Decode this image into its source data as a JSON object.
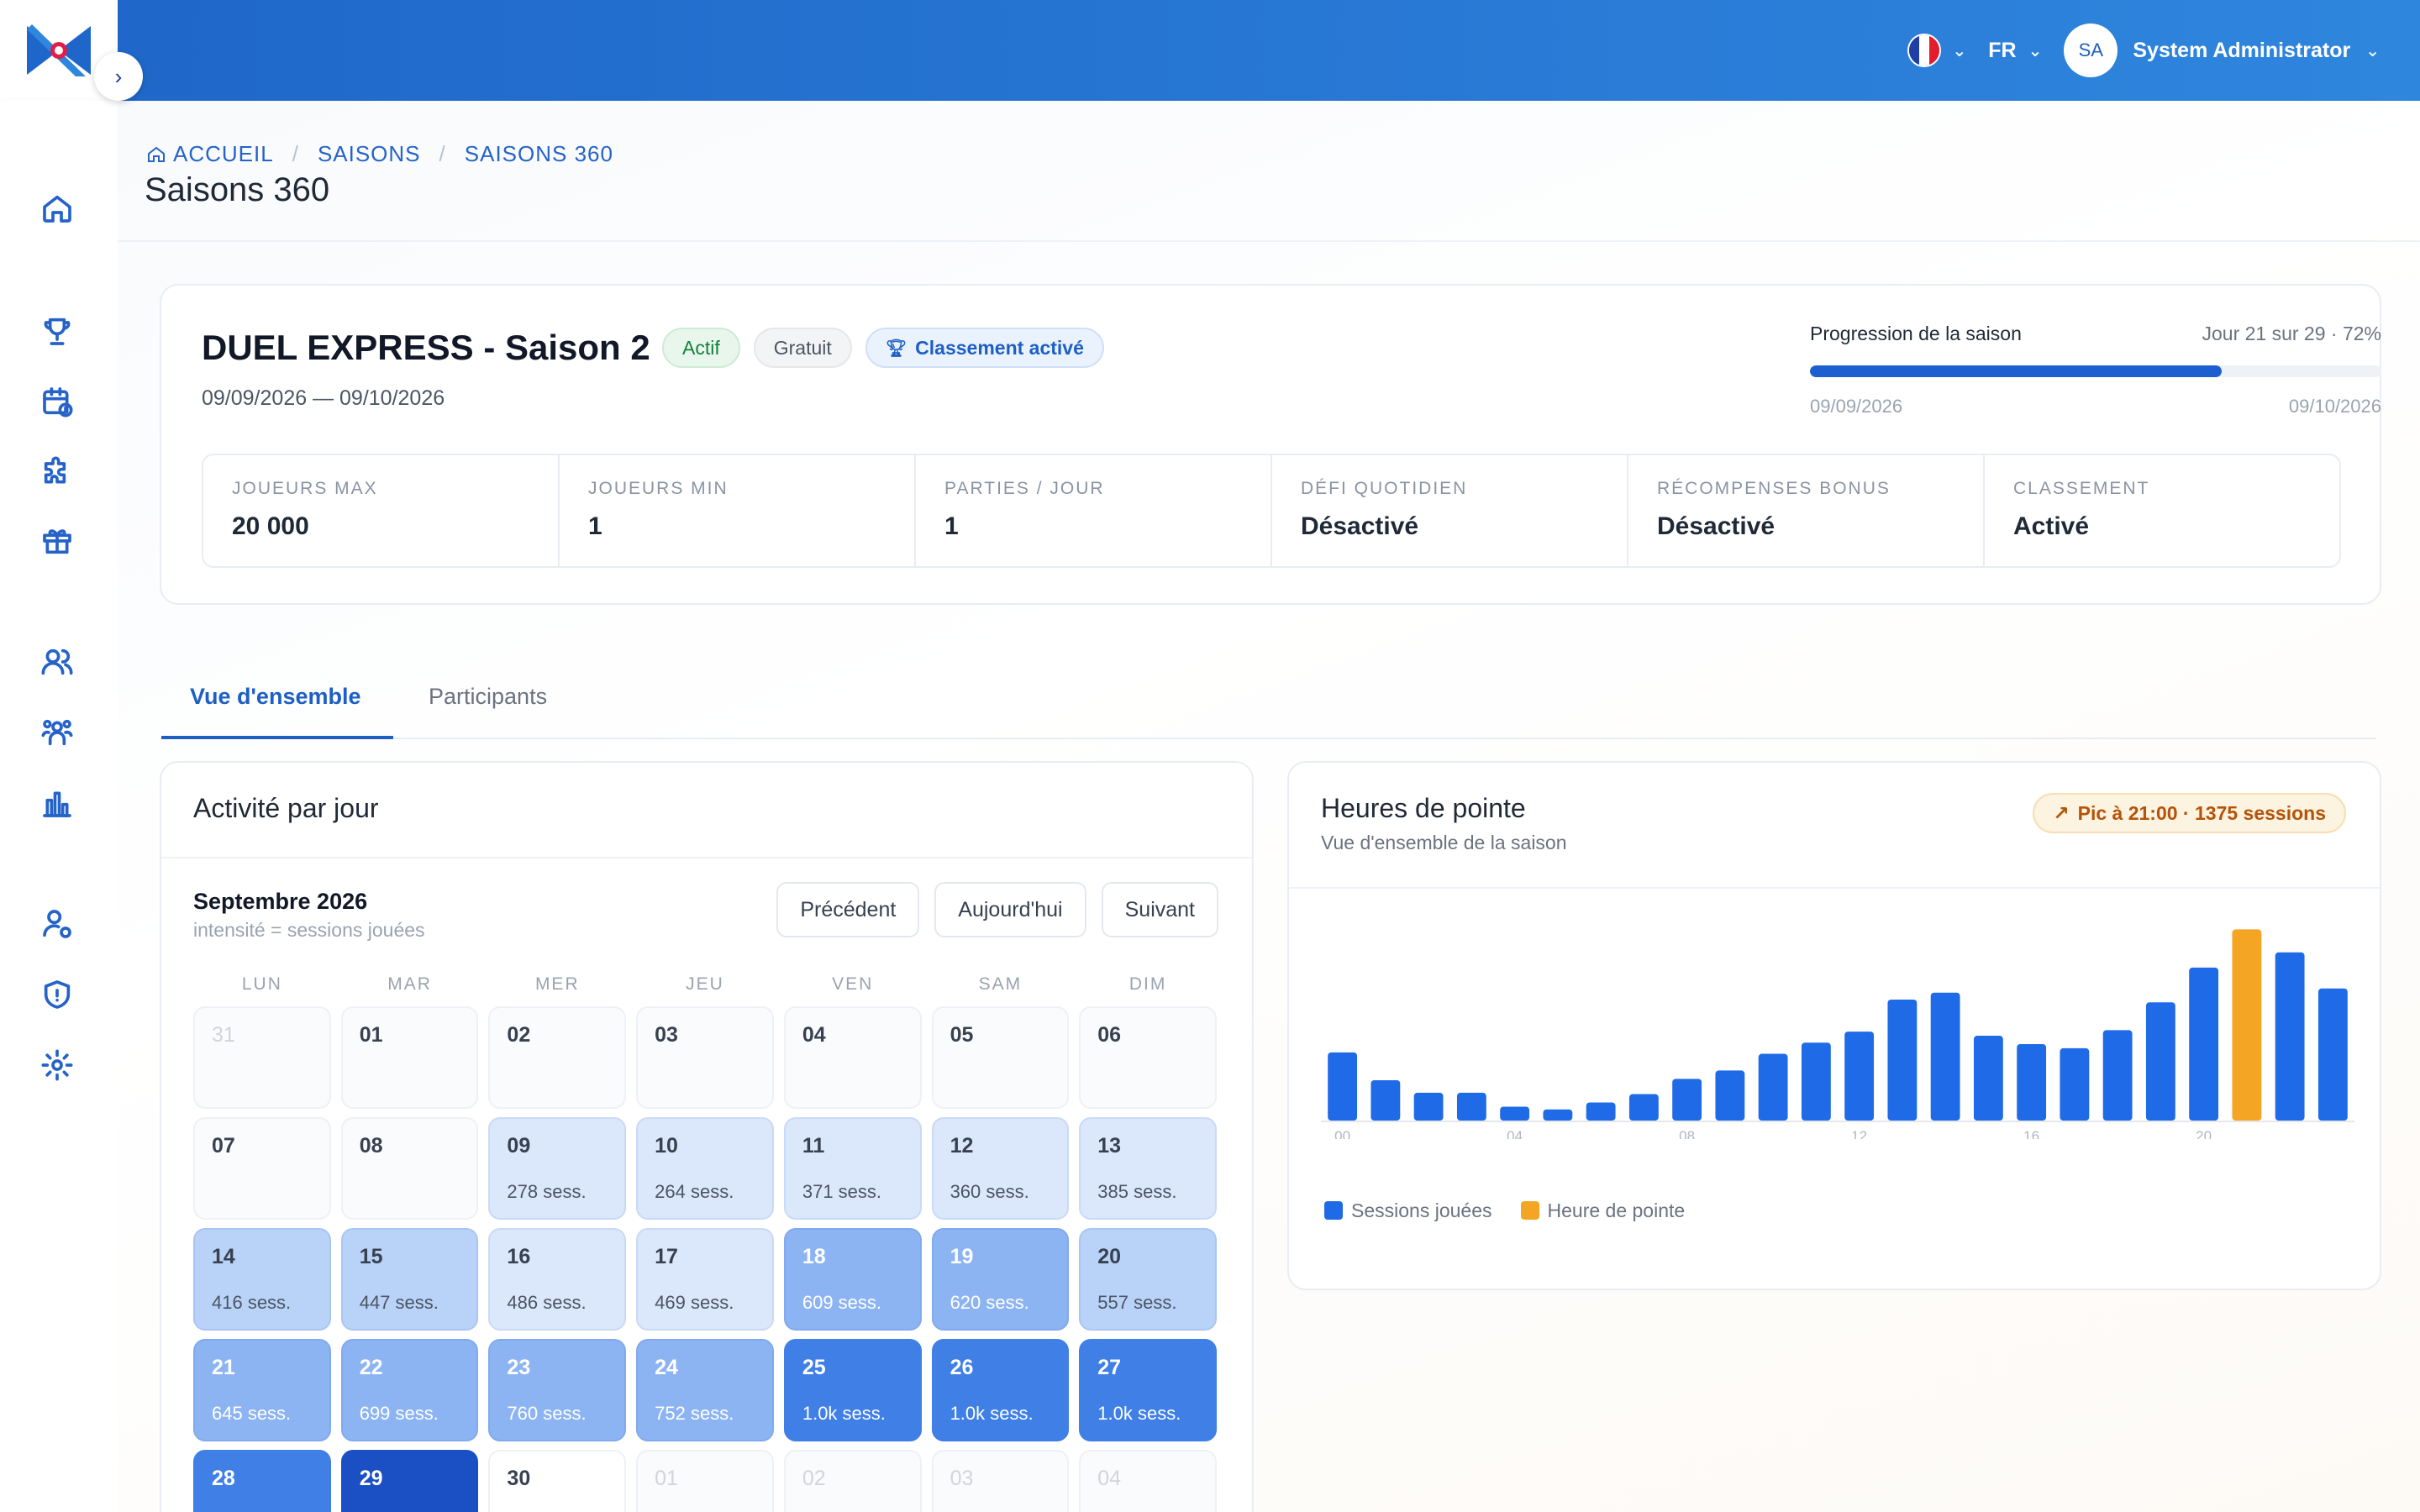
{
  "topbar": {
    "language": "FR",
    "user_initials": "SA",
    "user_name": "System Administrator"
  },
  "breadcrumb": {
    "home": "ACCUEIL",
    "level2": "SAISONS",
    "current": "SAISONS 360"
  },
  "page_title": "Saisons 360",
  "season": {
    "title": "DUEL EXPRESS - Saison 2",
    "badge_status": "Actif",
    "badge_price": "Gratuit",
    "badge_ranking": "Classement activé",
    "dates": "09/09/2026 — 09/10/2026",
    "progress_label": "Progression de la saison",
    "progress_value": "Jour 21 sur 29 · 72%",
    "progress_fraction": 0.72,
    "progress_start": "09/09/2026",
    "progress_end": "09/10/2026",
    "stats": [
      {
        "key": "JOUEURS MAX",
        "value": "20 000"
      },
      {
        "key": "JOUEURS MIN",
        "value": "1"
      },
      {
        "key": "PARTIES / JOUR",
        "value": "1"
      },
      {
        "key": "DÉFI QUOTIDIEN",
        "value": "Désactivé"
      },
      {
        "key": "RÉCOMPENSES BONUS",
        "value": "Désactivé"
      },
      {
        "key": "CLASSEMENT",
        "value": "Activé"
      }
    ]
  },
  "tabs": {
    "overview": "Vue d'ensemble",
    "participants": "Participants"
  },
  "activity": {
    "title": "Activité par jour",
    "month": "Septembre 2026",
    "subtitle": "intensité = sessions jouées",
    "btn_prev": "Précédent",
    "btn_today": "Aujourd'hui",
    "btn_next": "Suivant",
    "weekdays": [
      "LUN",
      "MAR",
      "MER",
      "JEU",
      "VEN",
      "SAM",
      "DIM"
    ],
    "days": [
      {
        "d": "31",
        "s": "",
        "lvl": "muted"
      },
      {
        "d": "01",
        "s": "",
        "lvl": "none"
      },
      {
        "d": "02",
        "s": "",
        "lvl": "none"
      },
      {
        "d": "03",
        "s": "",
        "lvl": "none"
      },
      {
        "d": "04",
        "s": "",
        "lvl": "none"
      },
      {
        "d": "05",
        "s": "",
        "lvl": "none"
      },
      {
        "d": "06",
        "s": "",
        "lvl": "none"
      },
      {
        "d": "07",
        "s": "",
        "lvl": "none"
      },
      {
        "d": "08",
        "s": "",
        "lvl": "none"
      },
      {
        "d": "09",
        "s": "278 sess.",
        "lvl": "l1"
      },
      {
        "d": "10",
        "s": "264 sess.",
        "lvl": "l1"
      },
      {
        "d": "11",
        "s": "371 sess.",
        "lvl": "l1"
      },
      {
        "d": "12",
        "s": "360 sess.",
        "lvl": "l1"
      },
      {
        "d": "13",
        "s": "385 sess.",
        "lvl": "l1"
      },
      {
        "d": "14",
        "s": "416 sess.",
        "lvl": "l2"
      },
      {
        "d": "15",
        "s": "447 sess.",
        "lvl": "l2"
      },
      {
        "d": "16",
        "s": "486 sess.",
        "lvl": "l1"
      },
      {
        "d": "17",
        "s": "469 sess.",
        "lvl": "l1"
      },
      {
        "d": "18",
        "s": "609 sess.",
        "lvl": "l3"
      },
      {
        "d": "19",
        "s": "620 sess.",
        "lvl": "l3"
      },
      {
        "d": "20",
        "s": "557 sess.",
        "lvl": "l2"
      },
      {
        "d": "21",
        "s": "645 sess.",
        "lvl": "l3"
      },
      {
        "d": "22",
        "s": "699 sess.",
        "lvl": "l3"
      },
      {
        "d": "23",
        "s": "760 sess.",
        "lvl": "l3"
      },
      {
        "d": "24",
        "s": "752 sess.",
        "lvl": "l3"
      },
      {
        "d": "25",
        "s": "1.0k sess.",
        "lvl": "l4"
      },
      {
        "d": "26",
        "s": "1.0k sess.",
        "lvl": "l4"
      },
      {
        "d": "27",
        "s": "1.0k sess.",
        "lvl": "l4"
      },
      {
        "d": "28",
        "s": "",
        "lvl": "l4"
      },
      {
        "d": "29",
        "s": "",
        "lvl": "l5"
      },
      {
        "d": "30",
        "s": "",
        "lvl": "white"
      },
      {
        "d": "01",
        "s": "",
        "lvl": "muted"
      },
      {
        "d": "02",
        "s": "",
        "lvl": "muted"
      },
      {
        "d": "03",
        "s": "",
        "lvl": "muted"
      },
      {
        "d": "04",
        "s": "",
        "lvl": "muted"
      }
    ]
  },
  "peak": {
    "title": "Heures de pointe",
    "subtitle": "Vue d'ensemble de la saison",
    "badge": "Pic à 21:00 · 1375 sessions",
    "legend_sessions": "Sessions jouées",
    "legend_peak": "Heure de pointe",
    "color_sessions": "#1f6ae6",
    "color_peak": "#f5a524"
  },
  "chart_data": {
    "type": "bar",
    "categories": [
      "00",
      "01",
      "02",
      "03",
      "04",
      "05",
      "06",
      "07",
      "08",
      "09",
      "10",
      "11",
      "12",
      "13",
      "14",
      "15",
      "16",
      "17",
      "18",
      "19",
      "20",
      "21",
      "22",
      "23"
    ],
    "tick_labels": [
      "00",
      "04",
      "08",
      "12",
      "16",
      "20"
    ],
    "series": [
      {
        "name": "Sessions jouées",
        "values": [
          490,
          290,
          200,
          200,
          100,
          80,
          130,
          190,
          300,
          360,
          480,
          560,
          640,
          870,
          920,
          610,
          550,
          520,
          650,
          850,
          1100,
          1375,
          1210,
          950
        ]
      }
    ],
    "highlight_index": 21,
    "ylim": [
      0,
      1450
    ]
  }
}
